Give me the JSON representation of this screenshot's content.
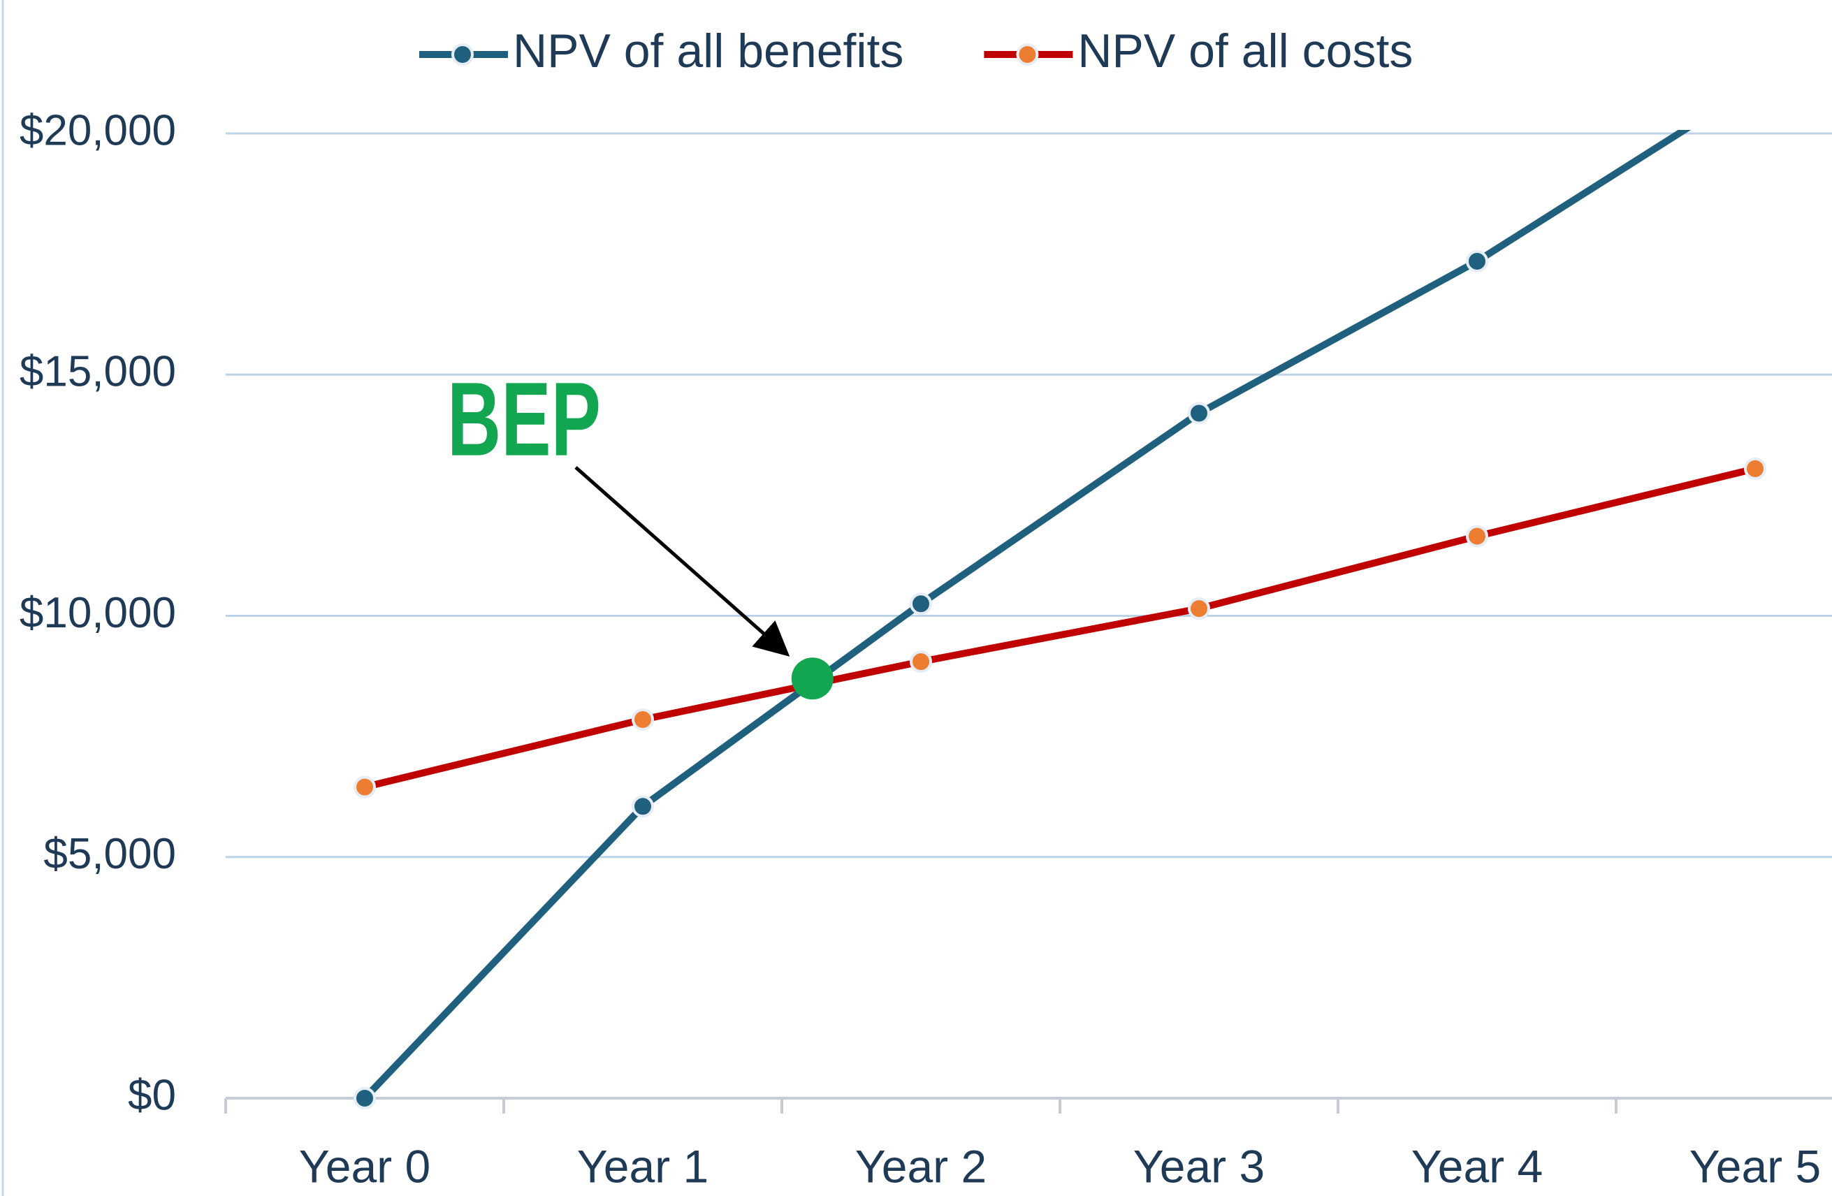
{
  "chart_data": {
    "type": "line",
    "categories": [
      "Year 0",
      "Year 1",
      "Year 2",
      "Year 3",
      "Year 4",
      "Year 5"
    ],
    "series": [
      {
        "name": "NPV of all benefits",
        "color": "#20607f",
        "marker_color": "#20607f",
        "values": [
          0,
          6050,
          10250,
          14200,
          17350,
          21000
        ]
      },
      {
        "name": "NPV of all costs",
        "color": "#c00000",
        "marker_color": "#ed7d31",
        "values": [
          6450,
          7850,
          9050,
          10150,
          11650,
          13050
        ]
      }
    ],
    "ylim": [
      0,
      20000
    ],
    "yticks": [
      {
        "value": 0,
        "label": "$0"
      },
      {
        "value": 5000,
        "label": "$5,000"
      },
      {
        "value": 10000,
        "label": "$10,000"
      },
      {
        "value": 15000,
        "label": "$15,000"
      },
      {
        "value": 20000,
        "label": "$20,000"
      }
    ],
    "grid": true,
    "legend": "top",
    "annotation": {
      "text": "BEP",
      "x": 1.61,
      "y": 8700,
      "color": "#12a650"
    }
  }
}
